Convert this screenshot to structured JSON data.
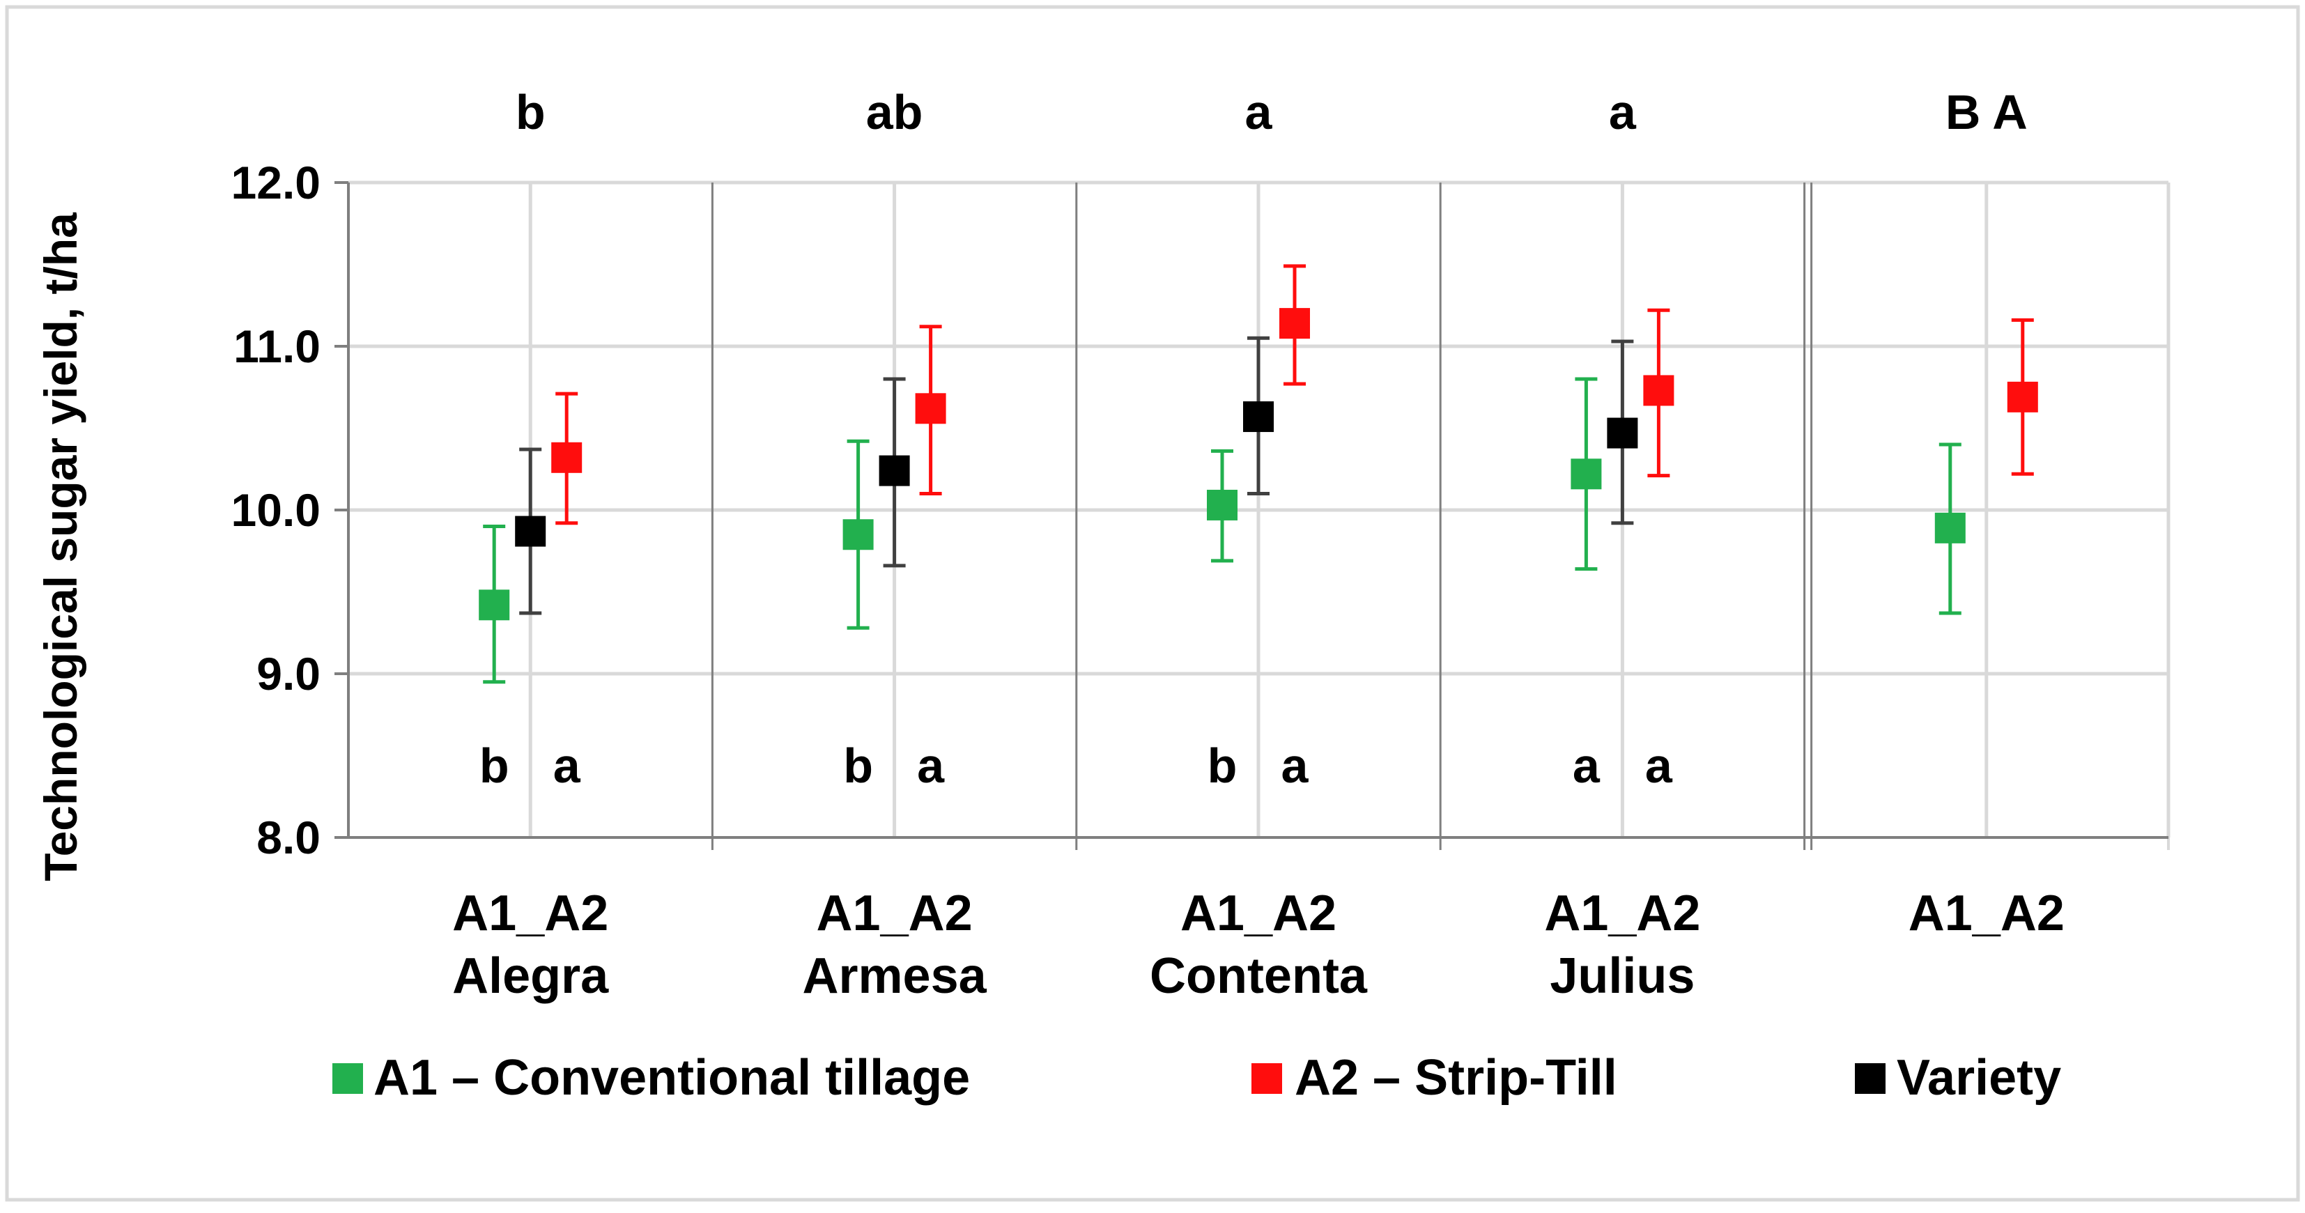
{
  "colors": {
    "A1": "#22b04e",
    "A2": "#ff0d0d",
    "variety": "#000000",
    "variety_error": "#404040",
    "grid": "#d9d9d9",
    "separator": "#7f7f7f",
    "frame": "#d9d9d9"
  },
  "chart_data": {
    "type": "scatter",
    "ylabel": "Technological sugar yield, t/ha",
    "ylim": [
      8.0,
      12.0
    ],
    "yticks": [
      "8.0",
      "9.0",
      "10.0",
      "11.0",
      "12.0"
    ],
    "grid": true,
    "legend_position": "bottom",
    "legend": [
      {
        "key": "A1",
        "label": "A1 – Conventional tillage"
      },
      {
        "key": "A2",
        "label": "A2 – Strip-Till"
      },
      {
        "key": "variety",
        "label": "Variety"
      }
    ],
    "groups": [
      {
        "x_label_line1": "A1_A2",
        "x_label_line2": "Alegra",
        "top_letter": "b",
        "bottom_letters": [
          "b",
          "a"
        ],
        "points": [
          {
            "series": "A1",
            "value": 9.42,
            "low": 8.95,
            "high": 9.9
          },
          {
            "series": "variety",
            "value": 9.87,
            "low": 9.37,
            "high": 10.37
          },
          {
            "series": "A2",
            "value": 10.32,
            "low": 9.92,
            "high": 10.71
          }
        ]
      },
      {
        "x_label_line1": "A1_A2",
        "x_label_line2": "Armesa",
        "top_letter": "ab",
        "bottom_letters": [
          "b",
          "a"
        ],
        "points": [
          {
            "series": "A1",
            "value": 9.85,
            "low": 9.28,
            "high": 10.42
          },
          {
            "series": "variety",
            "value": 10.24,
            "low": 9.66,
            "high": 10.8
          },
          {
            "series": "A2",
            "value": 10.62,
            "low": 10.1,
            "high": 11.12
          }
        ]
      },
      {
        "x_label_line1": "A1_A2",
        "x_label_line2": "Contenta",
        "top_letter": "a",
        "bottom_letters": [
          "b",
          "a"
        ],
        "points": [
          {
            "series": "A1",
            "value": 10.03,
            "low": 9.69,
            "high": 10.36
          },
          {
            "series": "variety",
            "value": 10.57,
            "low": 10.1,
            "high": 11.05
          },
          {
            "series": "A2",
            "value": 11.14,
            "low": 10.77,
            "high": 11.49
          }
        ]
      },
      {
        "x_label_line1": "A1_A2",
        "x_label_line2": "Julius",
        "top_letter": "a",
        "bottom_letters": [
          "a",
          "a"
        ],
        "points": [
          {
            "series": "A1",
            "value": 10.22,
            "low": 9.64,
            "high": 10.8
          },
          {
            "series": "variety",
            "value": 10.47,
            "low": 9.92,
            "high": 11.03
          },
          {
            "series": "A2",
            "value": 10.73,
            "low": 10.21,
            "high": 11.22
          }
        ]
      },
      {
        "x_label_line1": "A1_A2",
        "x_label_line2": "",
        "top_letter": "B  A",
        "bottom_letters": [],
        "points": [
          {
            "series": "A1",
            "value": 9.89,
            "low": 9.37,
            "high": 10.4
          },
          {
            "series": "A2",
            "value": 10.69,
            "low": 10.22,
            "high": 11.16
          }
        ]
      }
    ]
  }
}
